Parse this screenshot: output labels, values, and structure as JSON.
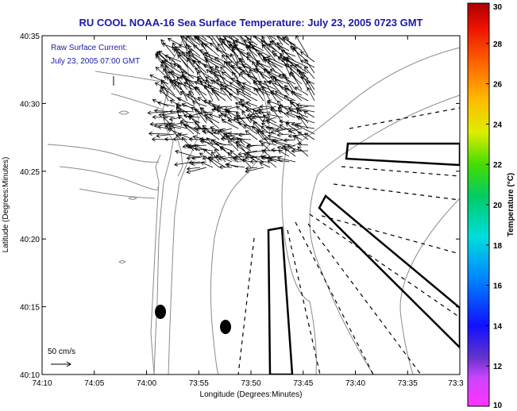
{
  "chart_data": {
    "type": "vector-field-map",
    "title": "RU COOL  NOAA-16  Sea Surface Temperature:  July 23, 2005 0723 GMT",
    "annotation_line1": "Raw Surface Current:",
    "annotation_line2": "July 23, 2005 07:00 GMT",
    "xlabel": "Longitude (Degrees:Minutes)",
    "ylabel": "Latitude (Degrees:Minutes)",
    "x_ticks": [
      "74:10",
      "74:05",
      "74:00",
      "73:55",
      "73:50",
      "73:45",
      "73:40",
      "73:35",
      "73:3"
    ],
    "y_ticks": [
      "40:35",
      "40:30",
      "40:25",
      "40:20",
      "40:15",
      "40:10"
    ],
    "xlim": [
      -74.1667,
      -73.5
    ],
    "ylim": [
      40.1667,
      40.5833
    ],
    "colorbar": {
      "label": "Temperature (°C)",
      "min": 10,
      "max": 30,
      "ticks": [
        "30",
        "28",
        "26",
        "24",
        "22",
        "20",
        "18",
        "16",
        "14",
        "12",
        "10"
      ]
    },
    "scale_label": "50 cm/s",
    "colors": {
      "title": "#1a1aa6",
      "coast": "#888888",
      "arrow": "#000000"
    }
  }
}
